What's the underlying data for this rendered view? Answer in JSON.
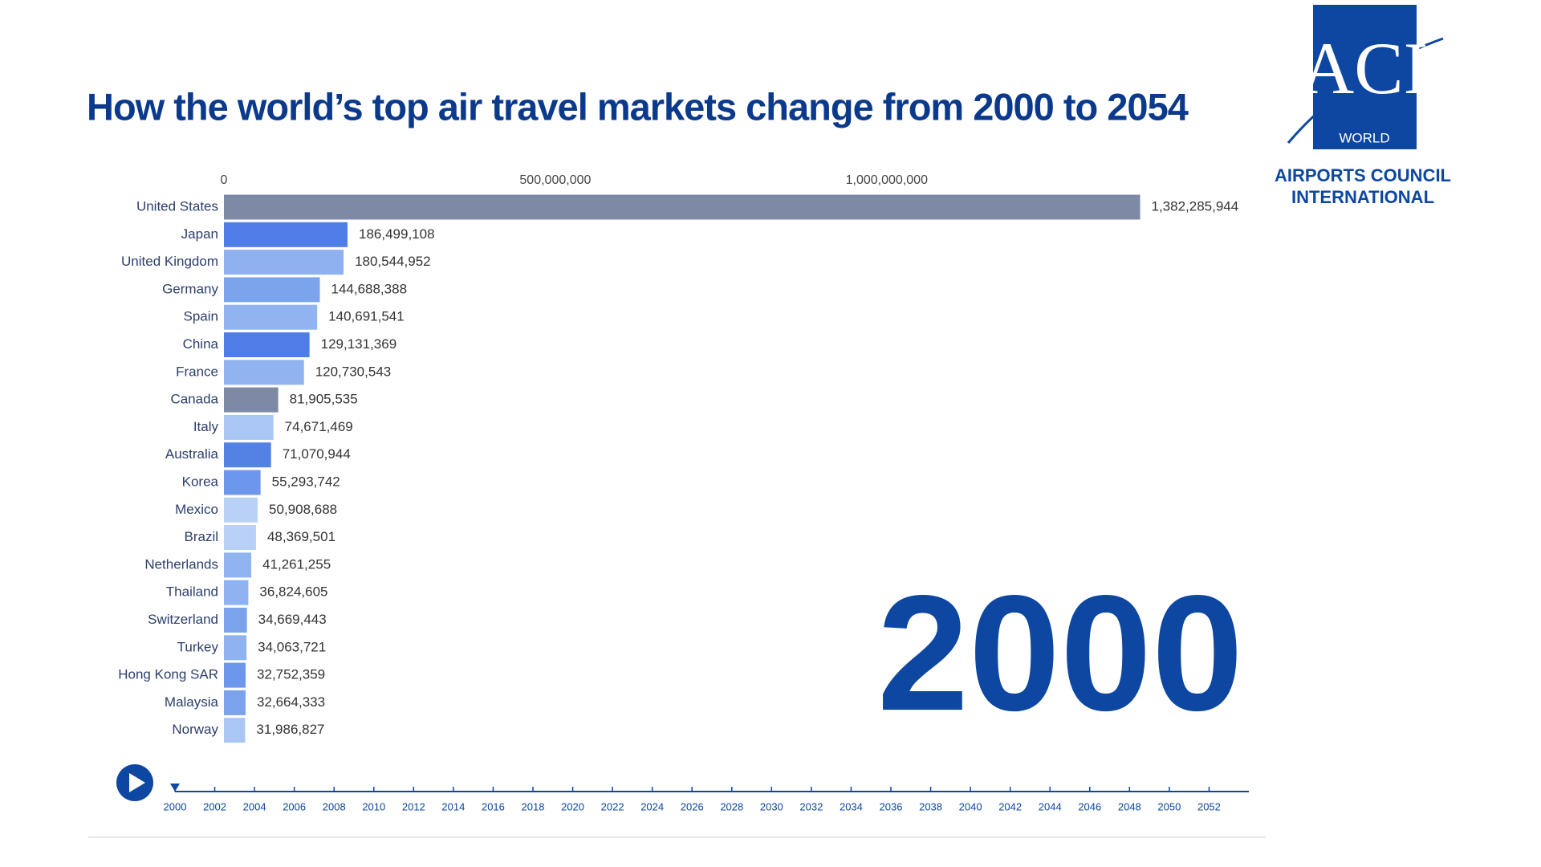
{
  "chart_data": {
    "type": "bar",
    "orientation": "horizontal",
    "title": "How the world’s top air travel markets change from 2000 to 2054",
    "categories": [
      "United States",
      "Japan",
      "United Kingdom",
      "Germany",
      "Spain",
      "China",
      "France",
      "Canada",
      "Italy",
      "Australia",
      "Korea",
      "Mexico",
      "Brazil",
      "Netherlands",
      "Thailand",
      "Switzerland",
      "Turkey",
      "Hong Kong SAR",
      "Malaysia",
      "Norway"
    ],
    "values": [
      1382285944,
      186499108,
      180544952,
      144688388,
      140691541,
      129131369,
      120730543,
      81905535,
      74671469,
      71070944,
      55293742,
      50908688,
      48369501,
      41261255,
      36824605,
      34669443,
      34063721,
      32752359,
      32664333,
      31986827
    ],
    "value_labels": [
      "1,382,285,944",
      "186,499,108",
      "180,544,952",
      "144,688,388",
      "140,691,541",
      "129,131,369",
      "120,730,543",
      "81,905,535",
      "74,671,469",
      "71,070,944",
      "55,293,742",
      "50,908,688",
      "48,369,501",
      "41,261,255",
      "36,824,605",
      "34,669,443",
      "34,063,721",
      "32,752,359",
      "32,664,333",
      "31,986,827"
    ],
    "colors": [
      "#7d89a5",
      "#4f7de8",
      "#8fb1f0",
      "#7ba4ec",
      "#8fb4f0",
      "#4f7de8",
      "#8fb4f0",
      "#7d89a5",
      "#a9c6f4",
      "#5282e3",
      "#6d97eb",
      "#b9d1f6",
      "#b9d1f6",
      "#90b4f1",
      "#8fb3f1",
      "#7aa2ed",
      "#8fb3f1",
      "#6d97eb",
      "#7aa2ed",
      "#a9c6f4"
    ],
    "xlim": [
      0,
      1550000000
    ],
    "xticks": [
      0,
      {
        "value": 500000000,
        "label": "500,000,000"
      },
      {
        "value": 1000000000,
        "label": "1,000,000,000"
      }
    ],
    "grid": false
  },
  "timeline": {
    "range": [
      2000,
      2054
    ],
    "ticks": [
      2000,
      2002,
      2004,
      2006,
      2008,
      2010,
      2012,
      2014,
      2016,
      2018,
      2020,
      2022,
      2024,
      2026,
      2028,
      2030,
      2032,
      2034,
      2036,
      2038,
      2040,
      2042,
      2044,
      2046,
      2048,
      2050,
      2052
    ],
    "current": 2000
  },
  "logo": {
    "mark": "ACI",
    "sub": "WORLD",
    "line1": "AIRPORTS COUNCIL",
    "line2": "INTERNATIONAL"
  }
}
